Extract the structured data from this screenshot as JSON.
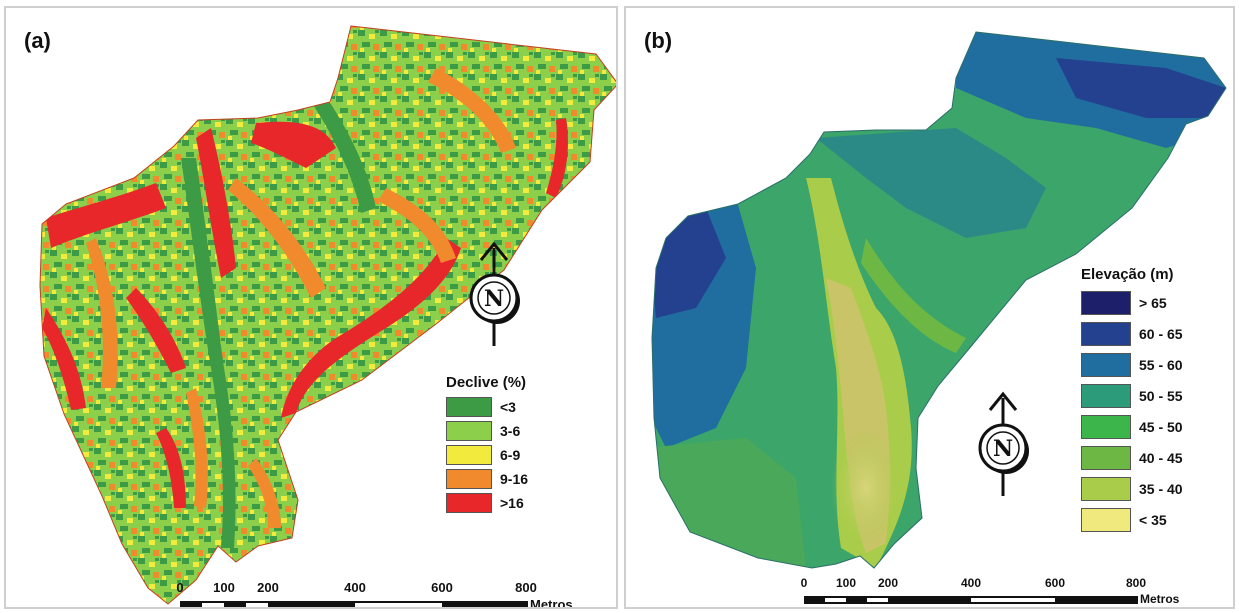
{
  "panel_a": {
    "label": "(a)",
    "legend": {
      "title": "Declive (%)",
      "items": [
        {
          "label": "<3",
          "color": "#3d9a45"
        },
        {
          "label": "3-6",
          "color": "#8ccf4a"
        },
        {
          "label": "6-9",
          "color": "#f2ea3c"
        },
        {
          "label": "9-16",
          "color": "#f08a2c"
        },
        {
          "label": ">16",
          "color": "#e8272a"
        }
      ]
    },
    "scale": {
      "ticks": [
        "0",
        "100",
        "200",
        "400",
        "600",
        "800"
      ],
      "unit": "Metros"
    },
    "north_arrow": "N"
  },
  "panel_b": {
    "label": "(b)",
    "legend": {
      "title": "Elevação (m)",
      "items": [
        {
          "label": "> 65",
          "color": "#1e1f6b"
        },
        {
          "label": "60 - 65",
          "color": "#24418f"
        },
        {
          "label": "55 - 60",
          "color": "#206ea0"
        },
        {
          "label": "50 - 55",
          "color": "#2c9b7a"
        },
        {
          "label": "45 - 50",
          "color": "#3cb54a"
        },
        {
          "label": "40 - 45",
          "color": "#6db844"
        },
        {
          "label": "35 - 40",
          "color": "#a9cc4a"
        },
        {
          "label": "< 35",
          "color": "#f0ea7e"
        }
      ]
    },
    "scale": {
      "ticks": [
        "0",
        "100",
        "200",
        "400",
        "600",
        "800"
      ],
      "unit": "Metros"
    },
    "north_arrow": "N"
  }
}
